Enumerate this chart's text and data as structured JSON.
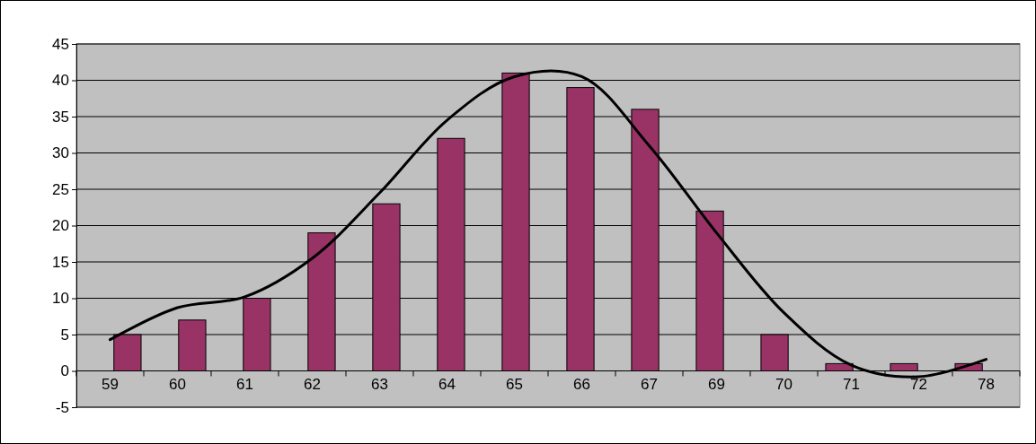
{
  "chart_data": {
    "type": "bar",
    "categories": [
      "59",
      "60",
      "61",
      "62",
      "63",
      "64",
      "65",
      "66",
      "67",
      "69",
      "70",
      "71",
      "72",
      "78"
    ],
    "series": [
      {
        "color": "#993366",
        "values": [
          5,
          7,
          10,
          19,
          23,
          32,
          41,
          39,
          36,
          22,
          5,
          1,
          1,
          1
        ]
      },
      {
        "type": "line",
        "color": "#000000",
        "values": [
          4.3,
          8.7,
          10.2,
          15.5,
          24.5,
          34.5,
          40.5,
          40.5,
          31,
          19,
          8,
          0.8,
          -0.8,
          1.6
        ]
      }
    ],
    "ylim": [
      -5,
      45
    ],
    "yticks": [
      -5,
      0,
      5,
      10,
      15,
      20,
      25,
      30,
      35,
      40,
      45
    ],
    "grid": "y"
  }
}
